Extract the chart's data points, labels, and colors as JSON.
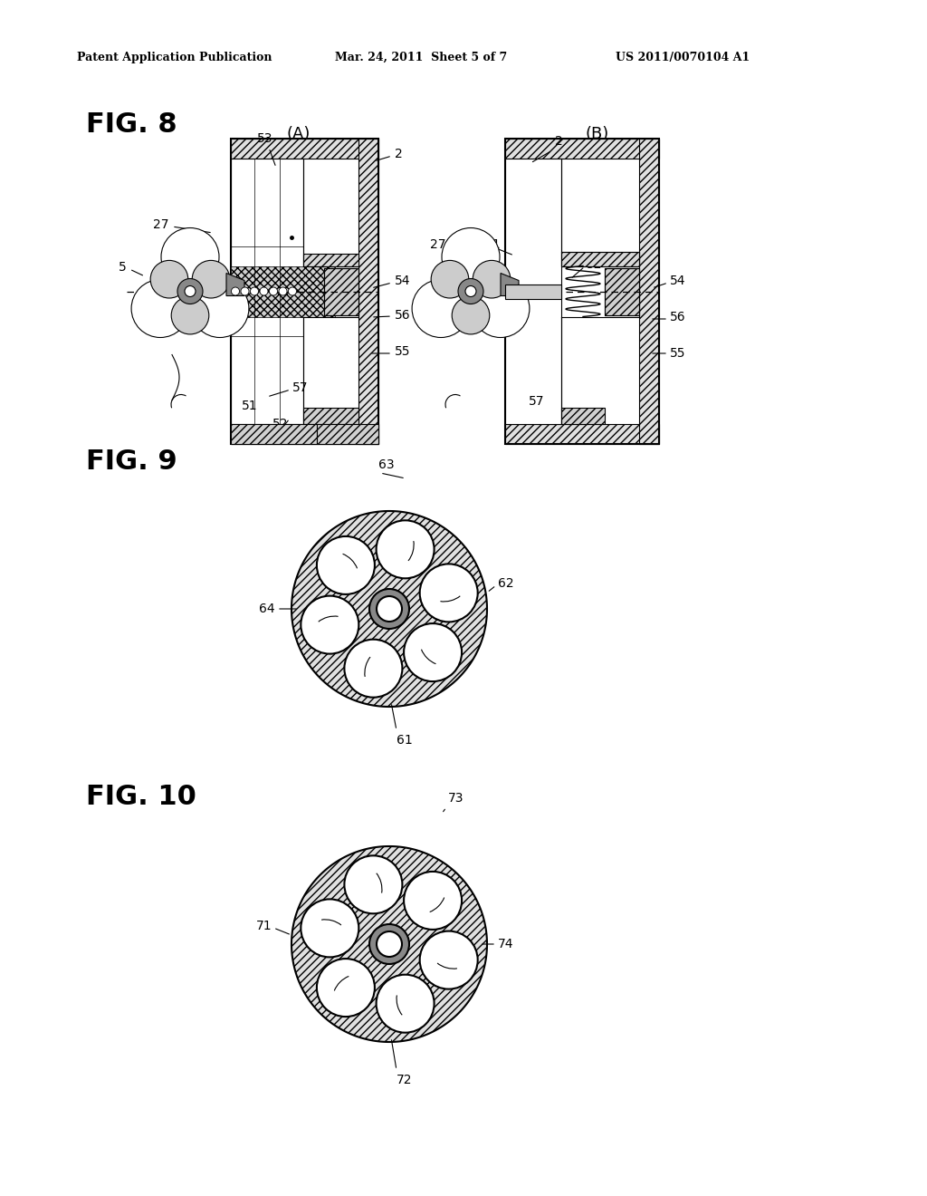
{
  "bg_color": "#ffffff",
  "text_color": "#000000",
  "header_left": "Patent Application Publication",
  "header_center": "Mar. 24, 2011  Sheet 5 of 7",
  "header_right": "US 2011/0070104 A1",
  "fig8_label": "FIG. 8",
  "fig9_label": "FIG. 9",
  "fig10_label": "FIG. 10",
  "fig8A_label": "(A)",
  "fig8B_label": "(B)",
  "hatch_color": "#000000",
  "hatch_bg": "#e8e8e8",
  "line_color": "#000000"
}
